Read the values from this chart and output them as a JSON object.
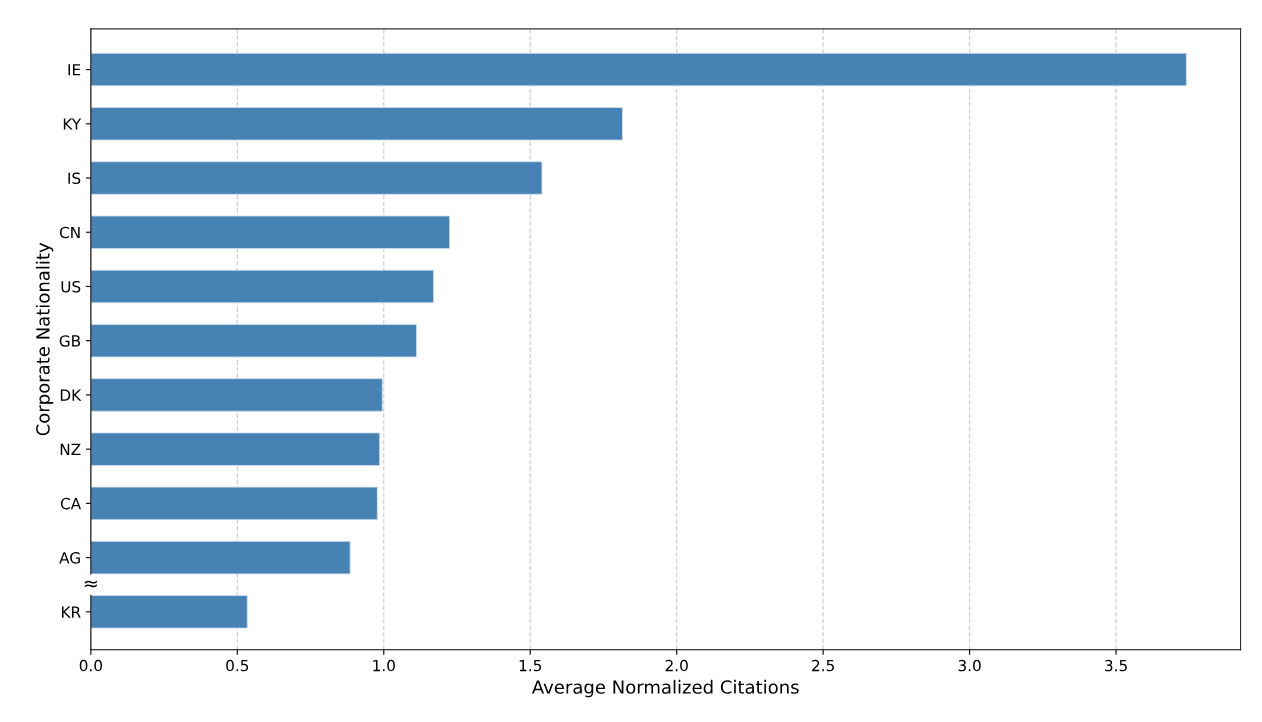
{
  "chart_data": {
    "type": "bar",
    "orientation": "horizontal",
    "xlabel": "Average Normalized Citations",
    "ylabel": "Corporate Nationality",
    "categories": [
      "IE",
      "KY",
      "IS",
      "CN",
      "US",
      "GB",
      "DK",
      "NZ",
      "CA",
      "AG",
      "KR"
    ],
    "values": [
      3.74,
      1.815,
      1.54,
      1.225,
      1.17,
      1.112,
      0.995,
      0.986,
      0.978,
      0.885,
      0.534
    ],
    "color": "#4682b4",
    "xlim": [
      0,
      3.925
    ],
    "xticks": [
      {
        "value": 0,
        "label": "0.0"
      },
      0.5,
      {
        "value": 1,
        "label": "1.0"
      },
      1.5,
      {
        "value": 2,
        "label": "2.0"
      },
      2.5,
      {
        "value": 3,
        "label": "3.0"
      },
      3.5
    ],
    "grid": "x",
    "line_style": "dashed",
    "annotations": [
      "≈"
    ]
  }
}
